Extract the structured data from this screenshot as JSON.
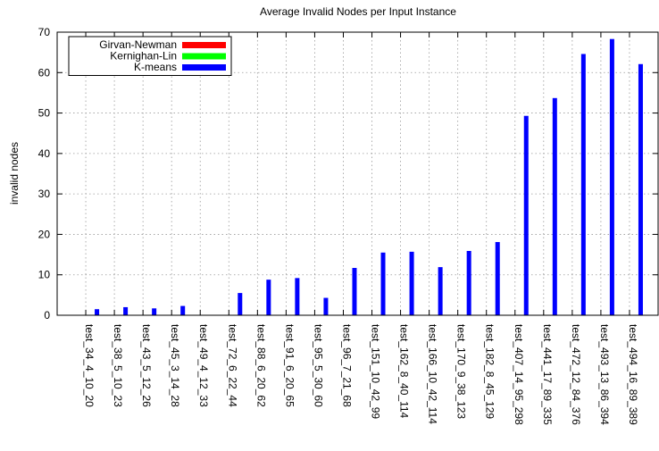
{
  "chart_data": {
    "type": "bar",
    "title": "Average Invalid Nodes per Input Instance",
    "y_label": "invalid nodes",
    "categories": [
      "test_34_4_10_20",
      "test_38_5_10_23",
      "test_43_5_12_26",
      "test_45_3_14_28",
      "test_49_4_12_33",
      "test_72_6_22_44",
      "test_88_6_20_62",
      "test_91_6_20_65",
      "test_95_5_30_60",
      "test_96_7_21_68",
      "test_151_10_42_99",
      "test_162_8_40_114",
      "test_166_10_42_114",
      "test_170_9_38_123",
      "test_182_8_45_129",
      "test_407_14_95_298",
      "test_441_17_89_335",
      "test_472_12_84_376",
      "test_493_13_86_394",
      "test_494_16_89_389"
    ],
    "series": [
      {
        "name": "Girvan-Newman",
        "color": "#ff0000",
        "values": [
          0,
          0,
          0,
          0,
          0,
          0,
          0,
          0,
          0,
          0,
          0,
          0,
          0,
          0,
          0,
          0,
          0,
          0,
          0,
          0
        ]
      },
      {
        "name": "Kernighan-Lin",
        "color": "#00ff00",
        "values": [
          0,
          0,
          0,
          0,
          0,
          0,
          0,
          0,
          0,
          0,
          0,
          0,
          0,
          0,
          0,
          0,
          0,
          0,
          0,
          0
        ]
      },
      {
        "name": "K-means",
        "color": "#0000ff",
        "values": [
          1.5,
          2,
          1.7,
          2.3,
          0,
          5.5,
          8.8,
          9.2,
          4.3,
          11.7,
          15.5,
          15.7,
          11.9,
          15.9,
          18.1,
          49.3,
          53.7,
          64.6,
          68.3,
          62.1
        ]
      }
    ],
    "ylim": [
      0,
      70
    ],
    "yticks": [
      0,
      10,
      20,
      30,
      40,
      50,
      60,
      70
    ],
    "grid": true,
    "legend": "top-left"
  }
}
